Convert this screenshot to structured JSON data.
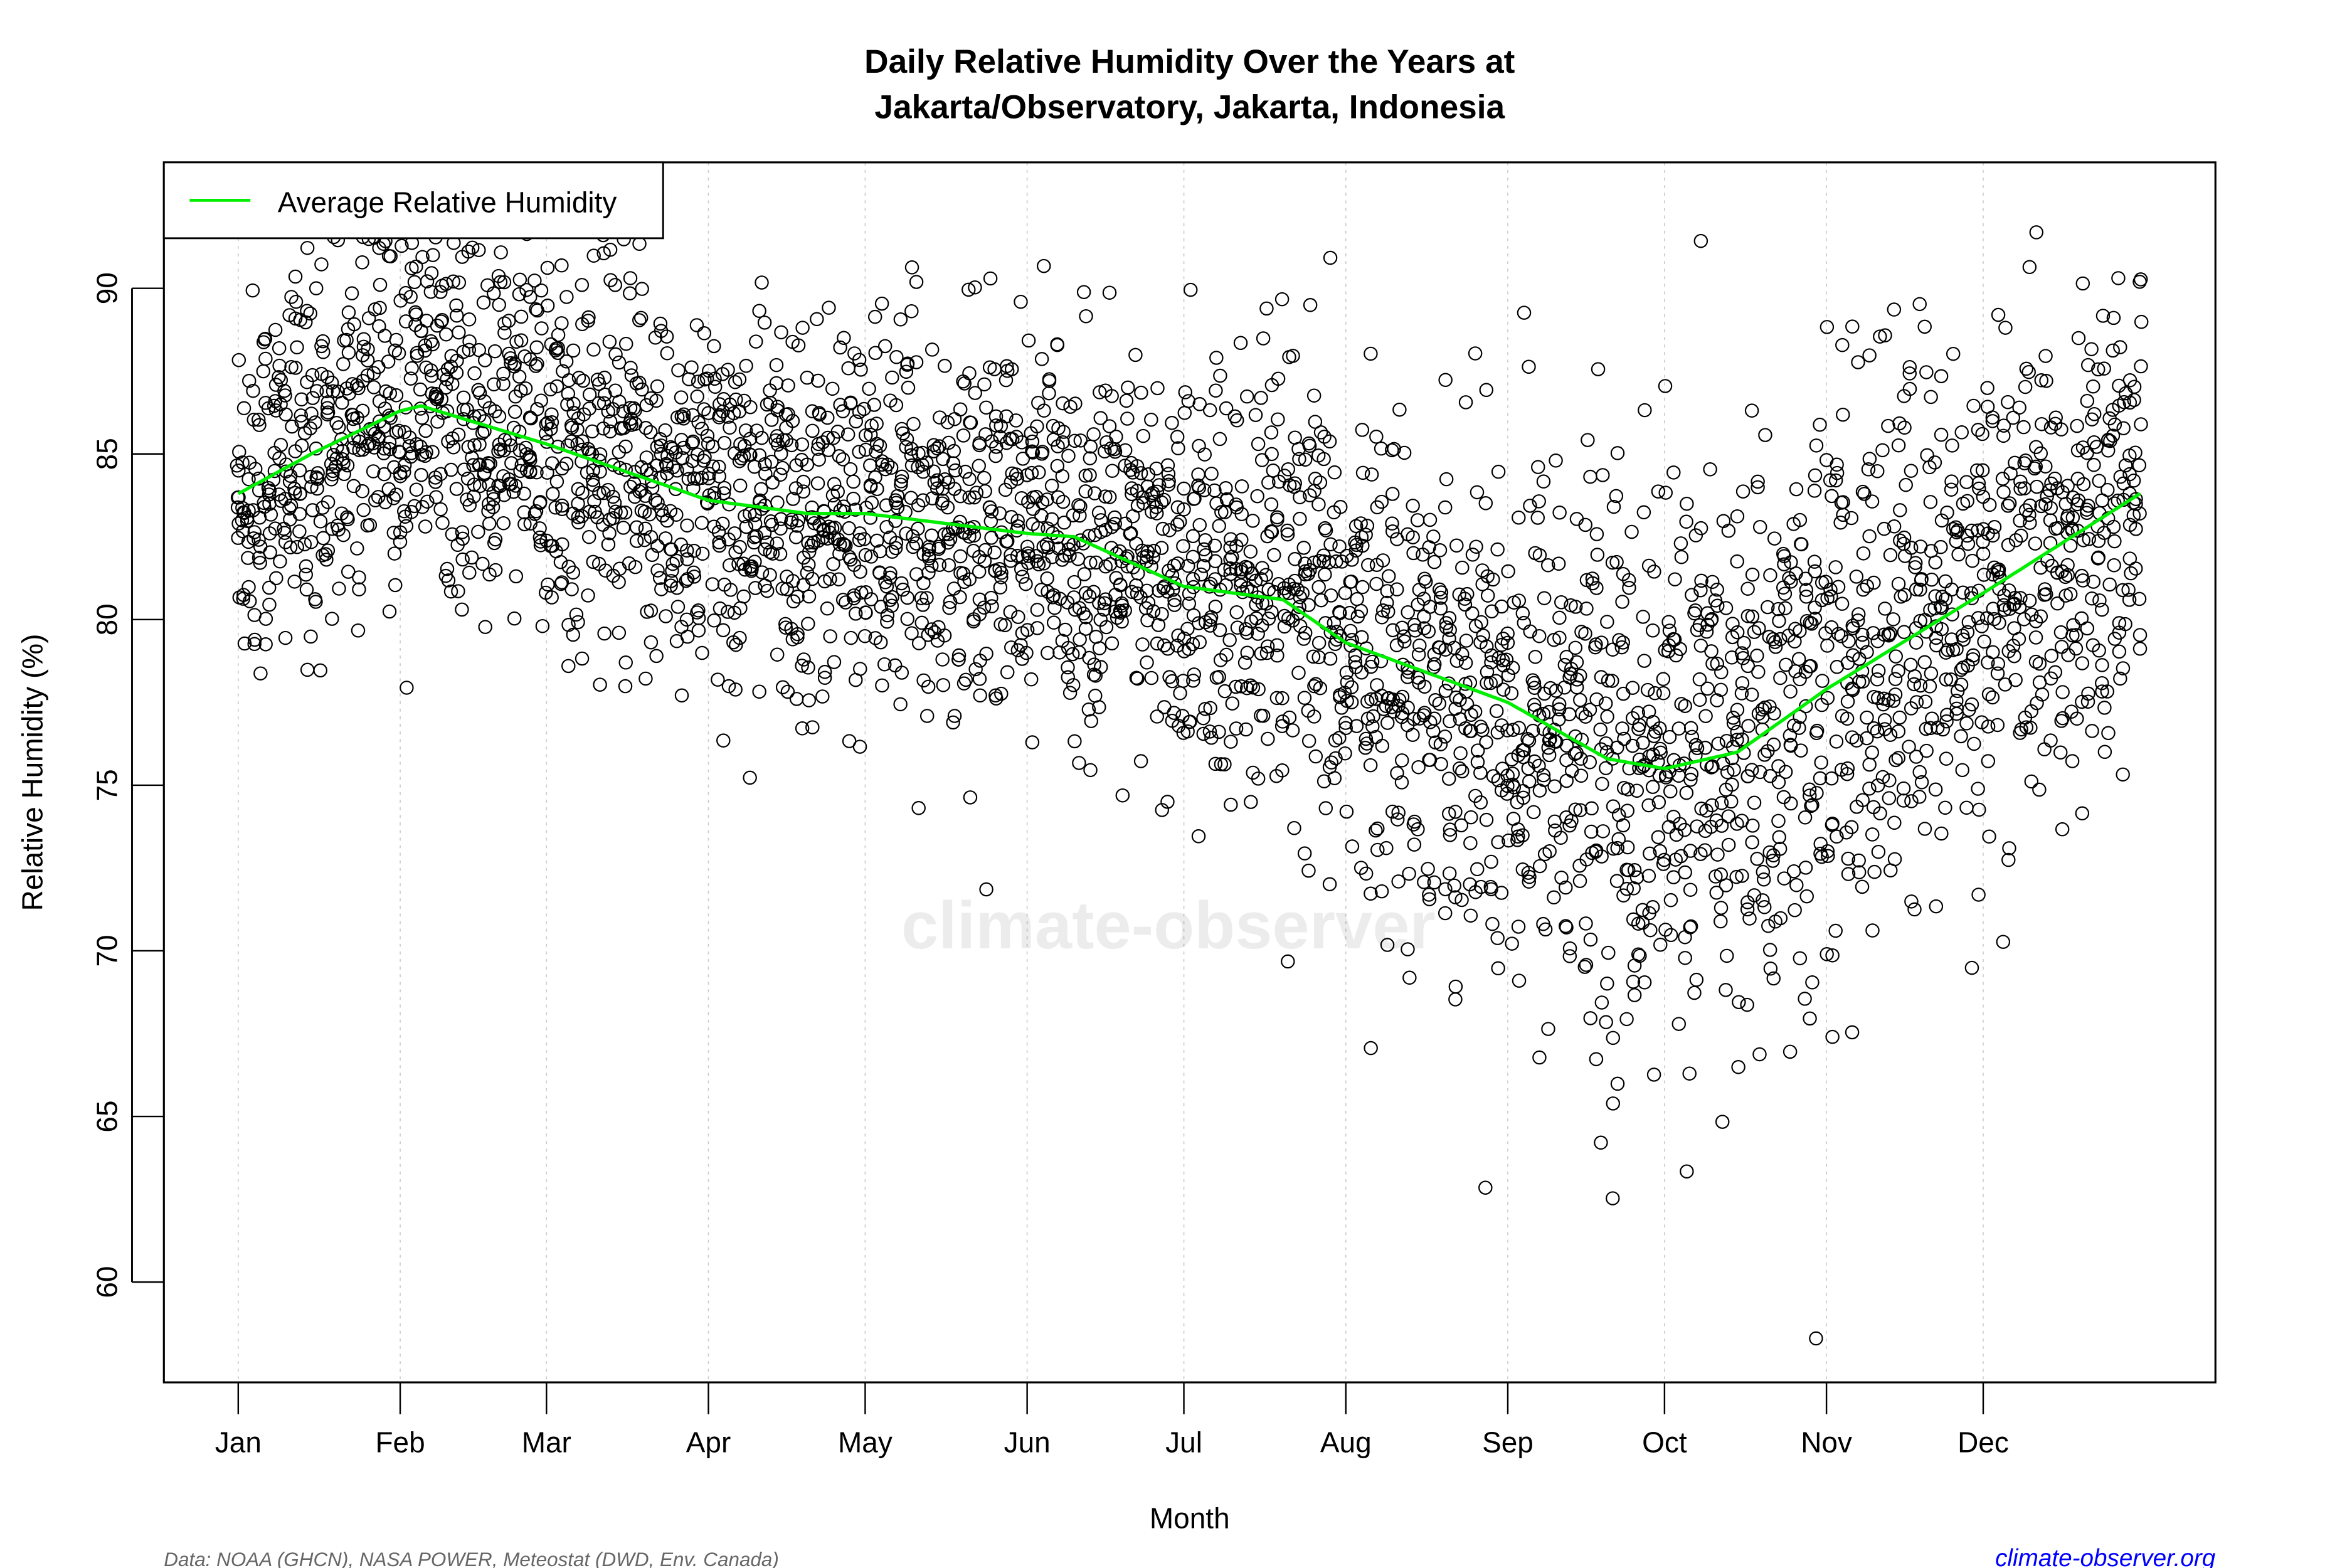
{
  "chart_data": {
    "type": "scatter",
    "title_line1": "Daily Relative Humidity Over the Years at",
    "title_line2": "Jakarta/Observatory, Jakarta, Indonesia",
    "xlabel": "Month",
    "ylabel": "Relative Humidity  (%)",
    "x_ticks": [
      "Jan",
      "Feb",
      "Mar",
      "Apr",
      "May",
      "Jun",
      "Jul",
      "Aug",
      "Sep",
      "Oct",
      "Nov",
      "Dec"
    ],
    "y_ticks": [
      60,
      65,
      70,
      75,
      80,
      85,
      90
    ],
    "ylim": [
      57.3,
      94.2
    ],
    "grid": "vertical dotted at month starts",
    "legend": {
      "position": "top-left",
      "entries": [
        {
          "label": "Average Relative Humidity",
          "color": "#00ee00"
        }
      ]
    },
    "series": [
      {
        "name": "Average Relative Humidity",
        "type": "line",
        "color": "#00ee00",
        "x_day_of_year": [
          1,
          15,
          32,
          36,
          60,
          91,
          110,
          121,
          152,
          161,
          182,
          201,
          213,
          244,
          263,
          274,
          288,
          305,
          335,
          365
        ],
        "y": [
          83.8,
          85.0,
          86.3,
          86.45,
          85.3,
          83.6,
          83.2,
          83.2,
          82.6,
          82.5,
          81.0,
          80.6,
          79.3,
          77.5,
          75.8,
          75.5,
          76.0,
          77.9,
          80.8,
          83.8
        ]
      },
      {
        "type": "scatter",
        "marker": "open circle",
        "color": "#000000",
        "description_points": "daily observations, roughly 69-92% Jan-Jun and 58-91% Jul-Dec",
        "notable_min": {
          "month": "Nov",
          "value": 58.3
        }
      }
    ]
  },
  "watermark": "climate-observer",
  "footer": {
    "source": "Data: NOAA (GHCN), NASA POWER, Meteostat (DWD, Env. Canada)",
    "site": "climate-observer.org",
    "site_color": "#0000ff"
  }
}
